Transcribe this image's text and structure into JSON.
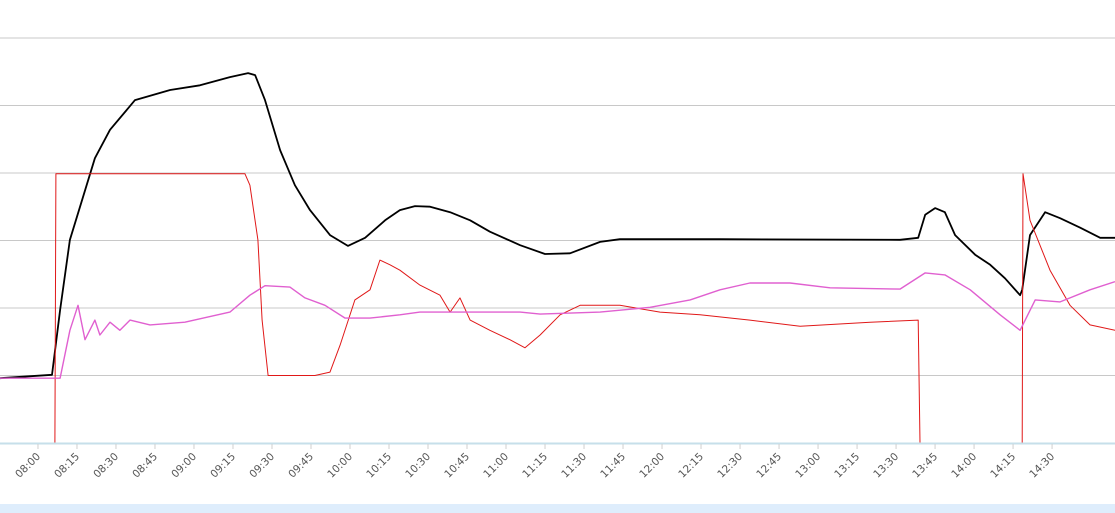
{
  "chart_data": {
    "type": "line",
    "title": "",
    "xlabel": "",
    "ylabel": "",
    "x_unit": "minutes since 08:00",
    "xlim": [
      -14.6,
      414.2
    ],
    "ylim": [
      0,
      6
    ],
    "grid": true,
    "y_gridlines": [
      1,
      2,
      3,
      4,
      5,
      6
    ],
    "x_tick_labels": [
      "08:00",
      "08:15",
      "08:30",
      "08:45",
      "09:00",
      "09:15",
      "09:30",
      "09:45",
      "10:00",
      "10:15",
      "10:30",
      "10:45",
      "11:00",
      "11:15",
      "11:30",
      "11:45",
      "12:00",
      "12:15",
      "12:30",
      "12:45",
      "13:00",
      "13:15",
      "13:30",
      "13:45",
      "14:00",
      "14:15",
      "14:30"
    ],
    "x_tick_values": [
      0,
      15,
      30,
      45,
      60,
      75,
      90,
      105,
      120,
      135,
      150,
      165,
      180,
      195,
      210,
      225,
      240,
      255,
      270,
      285,
      300,
      315,
      330,
      345,
      360,
      375,
      390
    ],
    "series": [
      {
        "name": "black",
        "color": "#000000",
        "x": [
          -14.6,
          5.4,
          8.5,
          12.3,
          21.9,
          27.7,
          37.3,
          50.8,
          62.3,
          73.8,
          80.8,
          83.5,
          87.3,
          93.1,
          98.8,
          104.6,
          112.3,
          119.2,
          125.8,
          133.5,
          139.2,
          145,
          150.8,
          158.5,
          166.2,
          173.8,
          185.4,
          195,
          204.6,
          216.2,
          223.8,
          262.3,
          331.5,
          338.5,
          341.2,
          345,
          348.8,
          352.7,
          360.4,
          366.2,
          371.9,
          377.7,
          378.5,
          381.5,
          387.3,
          393.1,
          400.8,
          408.5,
          414.2
        ],
        "y": [
          0.96,
          1.01,
          1.97,
          3.01,
          4.22,
          4.64,
          5.08,
          5.23,
          5.3,
          5.42,
          5.48,
          5.45,
          5.08,
          4.34,
          3.82,
          3.45,
          3.08,
          2.92,
          3.04,
          3.3,
          3.45,
          3.51,
          3.5,
          3.42,
          3.3,
          3.13,
          2.93,
          2.8,
          2.81,
          2.98,
          3.02,
          3.02,
          3.01,
          3.04,
          3.38,
          3.48,
          3.42,
          3.08,
          2.79,
          2.64,
          2.44,
          2.19,
          2.27,
          3.08,
          3.42,
          3.33,
          3.19,
          3.04,
          3.04
        ]
      },
      {
        "name": "red",
        "color": "#e01818",
        "x": [
          -14.6,
          6.5,
          6.9,
          79.6,
          81.5,
          84.6,
          86.2,
          88.5,
          106.5,
          112.3,
          116.2,
          121.9,
          127.7,
          131.5,
          135.4,
          139.2,
          146.9,
          154.6,
          158.5,
          162.3,
          166.2,
          173.8,
          181.5,
          187.3,
          193.1,
          200.8,
          208.5,
          223.8,
          239.2,
          254.6,
          273.8,
          293.1,
          320,
          338.5,
          339.2,
          378.5,
          378.8,
          381.5,
          389.2,
          396.9,
          404.6,
          414.2
        ],
        "y": [
          0,
          0,
          3.99,
          3.99,
          3.82,
          3.01,
          1.82,
          1.0,
          1.0,
          1.05,
          1.45,
          2.12,
          2.27,
          2.71,
          2.64,
          2.56,
          2.34,
          2.19,
          1.94,
          2.15,
          1.82,
          1.67,
          1.53,
          1.41,
          1.6,
          1.9,
          2.04,
          2.04,
          1.94,
          1.9,
          1.82,
          1.73,
          1.79,
          1.82,
          0,
          0,
          3.99,
          3.3,
          2.56,
          2.04,
          1.75,
          1.67
        ]
      },
      {
        "name": "magenta",
        "color": "#e060d0",
        "x": [
          -14.6,
          8.5,
          12.3,
          15.4,
          18.1,
          21.9,
          23.8,
          27.7,
          31.5,
          35.4,
          43.1,
          56.5,
          73.8,
          81.5,
          87.3,
          96.9,
          102.7,
          110.4,
          118.1,
          127.7,
          139.2,
          146.9,
          185.4,
          193.1,
          216.2,
          235.4,
          250.8,
          262.3,
          273.8,
          289.2,
          304.6,
          331.5,
          341.2,
          348.8,
          358.5,
          370,
          377.7,
          383.5,
          393.1,
          404.6,
          414.2
        ],
        "y": [
          0.96,
          0.96,
          1.67,
          2.04,
          1.53,
          1.82,
          1.6,
          1.79,
          1.67,
          1.82,
          1.75,
          1.79,
          1.94,
          2.19,
          2.33,
          2.31,
          2.15,
          2.04,
          1.85,
          1.85,
          1.9,
          1.94,
          1.94,
          1.91,
          1.94,
          2.01,
          2.12,
          2.27,
          2.37,
          2.37,
          2.3,
          2.28,
          2.52,
          2.49,
          2.27,
          1.9,
          1.67,
          2.12,
          2.09,
          2.27,
          2.39
        ]
      }
    ],
    "legend": "none"
  },
  "colors": {
    "grid": "#c8c8c8",
    "axis": "#c6dfea",
    "band": "#deedfc"
  }
}
